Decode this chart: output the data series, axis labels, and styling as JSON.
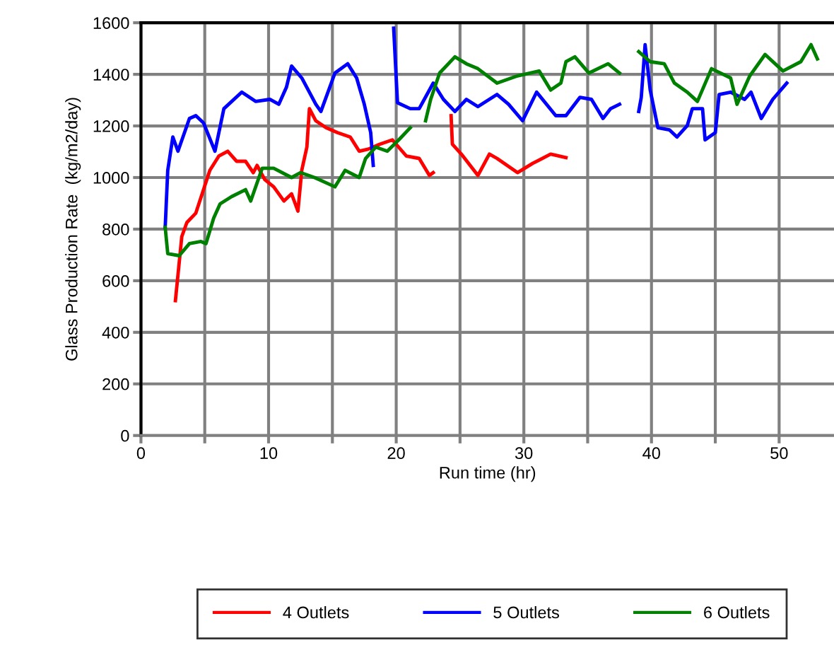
{
  "chart_data": {
    "type": "line",
    "xlabel": "Run time (hr)",
    "ylabel": "Glass Production Rate  (kg/m2/day)",
    "xlim": [
      0,
      54.3
    ],
    "ylim": [
      0,
      1600
    ],
    "xticks": [
      0,
      {
        "value": 5,
        "label": null
      },
      10,
      {
        "value": 15,
        "label": null
      },
      20,
      {
        "value": 25,
        "label": null
      },
      30,
      {
        "value": 35,
        "label": null
      },
      40,
      {
        "value": 45,
        "label": null
      },
      50
    ],
    "yticks": [
      0,
      200,
      400,
      600,
      800,
      1000,
      1200,
      1400,
      1600
    ],
    "grid": true,
    "legend": "bottom",
    "line_style": "solid",
    "marker": "none",
    "series": [
      {
        "name": "4 Outlets",
        "color": "#ff0000",
        "x": [
          2.7,
          3.2,
          3.6,
          4.3,
          4.9,
          5.4,
          6.1,
          6.8,
          7.5,
          8.2,
          8.8,
          9.1,
          9.7,
          10.4,
          11.2,
          11.8,
          12.3,
          12.6,
          13.0,
          13.2,
          13.7,
          14.5,
          15.4,
          16.4,
          17.1,
          17.8,
          18.7,
          19.7,
          20.8,
          21.8,
          22.6,
          22.9,
          23.6,
          24.3,
          24.4,
          25.1,
          26.4,
          27.3,
          27.9,
          29.5,
          30.7,
          32.1,
          33.3
        ],
        "values": [
          523,
          771,
          826,
          862,
          953,
          1028,
          1083,
          1102,
          1063,
          1063,
          1019,
          1047,
          992,
          964,
          909,
          937,
          870,
          1028,
          1118,
          1267,
          1220,
          1193,
          1174,
          1157,
          1102,
          1110,
          1129,
          1146,
          1083,
          1074,
          1008,
          1019,
          null,
          1240,
          1129,
          1091,
          1008,
          1091,
          1074,
          1019,
          1055,
          1091,
          1077
        ]
      },
      {
        "name": "5 Outlets",
        "color": "#0000ff",
        "x": [
          1.9,
          2.1,
          2.5,
          2.9,
          3.8,
          4.3,
          4.9,
          5.8,
          6.5,
          7.9,
          9.0,
          10.1,
          10.8,
          11.4,
          11.8,
          12.6,
          13.7,
          14.1,
          15.2,
          16.2,
          16.9,
          17.5,
          18.0,
          18.2,
          19.0,
          19.8,
          20.1,
          21.1,
          21.8,
          22.9,
          23.7,
          24.6,
          25.5,
          26.4,
          27.9,
          28.8,
          29.9,
          31.0,
          32.5,
          33.3,
          34.4,
          35.3,
          36.2,
          36.8,
          37.5,
          38.2,
          39.0,
          39.2,
          39.5,
          39.9,
          40.5,
          41.4,
          42.0,
          42.8,
          43.2,
          44.0,
          44.2,
          45.0,
          45.3,
          46.2,
          47.3,
          47.8,
          48.6,
          49.5,
          50.6
        ],
        "values": [
          807,
          1028,
          1157,
          1102,
          1229,
          1240,
          1212,
          1102,
          1267,
          1331,
          1295,
          1303,
          1284,
          1350,
          1432,
          1386,
          1284,
          1256,
          1405,
          1441,
          1386,
          1284,
          1174,
          1047,
          null,
          1579,
          1290,
          1267,
          1267,
          1366,
          1303,
          1256,
          1303,
          1275,
          1322,
          1284,
          1220,
          1331,
          1240,
          1240,
          1311,
          1303,
          1229,
          1267,
          1284,
          null,
          1256,
          1311,
          1515,
          1339,
          1193,
          1185,
          1157,
          1201,
          1267,
          1267,
          1146,
          1174,
          1322,
          1331,
          1303,
          1331,
          1229,
          1303,
          1366
        ]
      },
      {
        "name": "6 Outlets",
        "color": "#008000",
        "x": [
          1.9,
          2.1,
          3.0,
          3.8,
          4.7,
          5.1,
          5.7,
          6.2,
          7.1,
          8.2,
          8.6,
          9.5,
          10.4,
          11.8,
          12.5,
          13.6,
          15.2,
          16.0,
          17.1,
          17.6,
          18.4,
          19.3,
          20.2,
          21.1,
          21.7,
          22.3,
          22.7,
          23.4,
          24.6,
          25.5,
          26.4,
          27.9,
          29.5,
          31.2,
          32.1,
          32.9,
          33.3,
          34.0,
          35.1,
          36.6,
          37.5,
          38.2,
          39.0,
          39.9,
          41.0,
          41.8,
          42.8,
          43.6,
          44.7,
          46.2,
          46.7,
          47.7,
          48.9,
          50.3,
          51.7,
          52.5,
          53.0
        ],
        "values": [
          807,
          705,
          697,
          744,
          752,
          744,
          843,
          898,
          926,
          953,
          909,
          1036,
          1036,
          1000,
          1019,
          1000,
          964,
          1028,
          1000,
          1074,
          1118,
          1102,
          1146,
          1193,
          null,
          1220,
          1303,
          1405,
          1468,
          1441,
          1422,
          1366,
          1394,
          1413,
          1339,
          1366,
          1449,
          1468,
          1405,
          1441,
          1405,
          null,
          1488,
          1449,
          1441,
          1366,
          1331,
          1295,
          1422,
          1386,
          1284,
          1394,
          1477,
          1413,
          1449,
          1515,
          1460
        ]
      }
    ]
  }
}
